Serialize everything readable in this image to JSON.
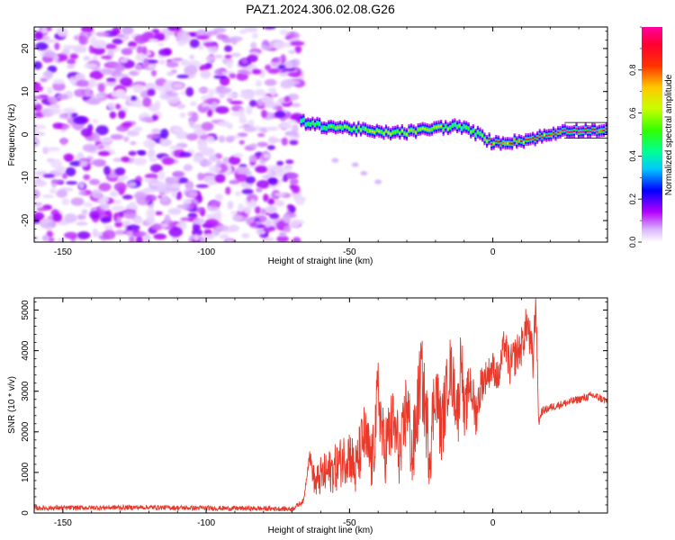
{
  "figure_title": "PAZ1.2024.306.02.08.G26",
  "chart_data": [
    {
      "type": "heatmap",
      "xlabel": "Height of straight line (km)",
      "ylabel": "Frequency (Hz)",
      "xlim": [
        -160,
        40
      ],
      "ylim": [
        -25,
        25
      ],
      "xticks": [
        -150,
        -100,
        -50,
        0
      ],
      "yticks": [
        -20,
        -10,
        0,
        10,
        20
      ],
      "colorbar": {
        "label": "Normalized spectral amplitude",
        "range": [
          0.0,
          1.0
        ],
        "ticks": [
          "0.0",
          "0.2",
          "0.4",
          "0.6",
          "0.8"
        ],
        "colormap": [
          "#ffffff",
          "#b400ff",
          "#0000ff",
          "#00ffff",
          "#00ff00",
          "#ffff00",
          "#ff0000",
          "#ff00a0"
        ]
      },
      "noise_region_x": [
        -160,
        -67
      ],
      "signal_ridge": {
        "x": [
          -67,
          -60,
          -50,
          -40,
          -30,
          -20,
          -12,
          -5,
          0,
          10,
          20,
          25,
          40
        ],
        "frequency_hz": [
          3,
          2,
          1.5,
          0.5,
          0.5,
          1.5,
          2,
          0,
          -2,
          -1.5,
          0,
          1,
          1
        ],
        "peak_amplitude": [
          0.45,
          0.5,
          0.6,
          0.65,
          0.7,
          0.7,
          0.55,
          0.6,
          0.9,
          0.85,
          0.9,
          1.0,
          1.0
        ]
      },
      "scattered_component": {
        "x": [
          -55,
          -48,
          -45,
          -40
        ],
        "frequency_hz": [
          -6,
          -7,
          -9,
          -11
        ]
      }
    },
    {
      "type": "line",
      "xlabel": "Height of straight line (km)",
      "ylabel": "SNR (10 * v/v)",
      "xlim": [
        -160,
        40
      ],
      "ylim": [
        0,
        5300
      ],
      "xticks": [
        -150,
        -100,
        -50,
        0
      ],
      "yticks": [
        0,
        1000,
        2000,
        3000,
        4000,
        5000
      ],
      "color": "#e8392b",
      "series": [
        {
          "x": [
            -160,
            -140,
            -120,
            -100,
            -80,
            -70,
            -66,
            -64,
            -62,
            -60,
            -55,
            -50,
            -48,
            -45,
            -42,
            -40,
            -38,
            -35,
            -32,
            -30,
            -28,
            -25,
            -22,
            -20,
            -18,
            -15,
            -12,
            -11,
            -10,
            -8,
            -6,
            -4,
            -2,
            0,
            2,
            4,
            6,
            8,
            10,
            12,
            14,
            15,
            16,
            17,
            20,
            25,
            30,
            35,
            40
          ],
          "y": [
            120,
            130,
            140,
            120,
            110,
            100,
            300,
            1450,
            700,
            900,
            1100,
            1500,
            1000,
            1900,
            1200,
            3000,
            1500,
            2200,
            1400,
            2800,
            1300,
            3500,
            1500,
            3200,
            2000,
            3600,
            2500,
            4300,
            2200,
            3300,
            2400,
            3200,
            3400,
            3600,
            3300,
            4200,
            3600,
            3900,
            4100,
            4700,
            3700,
            5300,
            2200,
            2500,
            2600,
            2700,
            2800,
            2900,
            2750
          ],
          "noise_amplitude": [
            60,
            60,
            60,
            60,
            60,
            60,
            60,
            150,
            400,
            500,
            600,
            700,
            700,
            800,
            800,
            900,
            900,
            900,
            900,
            1000,
            1000,
            1000,
            1000,
            900,
            900,
            800,
            800,
            800,
            700,
            600,
            600,
            500,
            400,
            400,
            400,
            400,
            500,
            500,
            500,
            500,
            600,
            400,
            100,
            100,
            100,
            100,
            100,
            100,
            100
          ]
        }
      ]
    }
  ]
}
